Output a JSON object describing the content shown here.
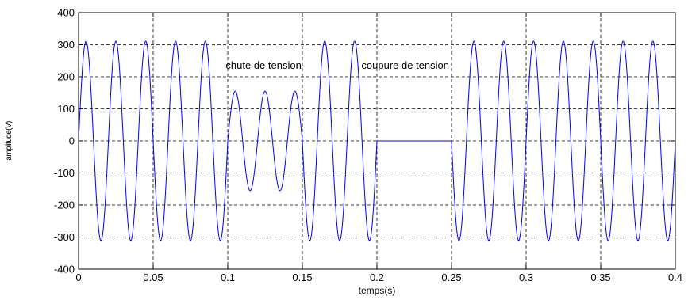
{
  "chart_data": {
    "type": "line",
    "title": "",
    "xlabel": "temps(s)",
    "ylabel": "amplitude(V)",
    "xlim": [
      0,
      0.4
    ],
    "ylim": [
      -400,
      400
    ],
    "xticks": [
      0,
      0.05,
      0.1,
      0.15,
      0.2,
      0.25,
      0.3,
      0.35,
      0.4
    ],
    "xtick_labels": [
      "0",
      "0.05",
      "0.1",
      "0.15",
      "0.2",
      "0.25",
      "0.3",
      "0.35",
      "0.4"
    ],
    "yticks": [
      -400,
      -300,
      -200,
      -100,
      0,
      100,
      200,
      300,
      400
    ],
    "ytick_labels": [
      "-400",
      "-300",
      "-200",
      "-100",
      "0",
      "100",
      "200",
      "300",
      "400"
    ],
    "grid": true,
    "line_color": "#0000ff",
    "series": [
      {
        "signal": "sine",
        "frequency_hz": 50,
        "segments": [
          {
            "t_start": 0,
            "t_end": 0.1,
            "amplitude": 311
          },
          {
            "t_start": 0.1,
            "t_end": 0.15,
            "amplitude": 155
          },
          {
            "t_start": 0.15,
            "t_end": 0.2,
            "amplitude": 311
          },
          {
            "t_start": 0.2,
            "t_end": 0.25,
            "amplitude": 0
          },
          {
            "t_start": 0.25,
            "t_end": 0.4,
            "amplitude": 311
          }
        ]
      }
    ],
    "annotations": [
      {
        "text": "chute de tension",
        "x": 0.124,
        "y": 225
      },
      {
        "text": "coupure de tension",
        "x": 0.219,
        "y": 225
      }
    ]
  }
}
